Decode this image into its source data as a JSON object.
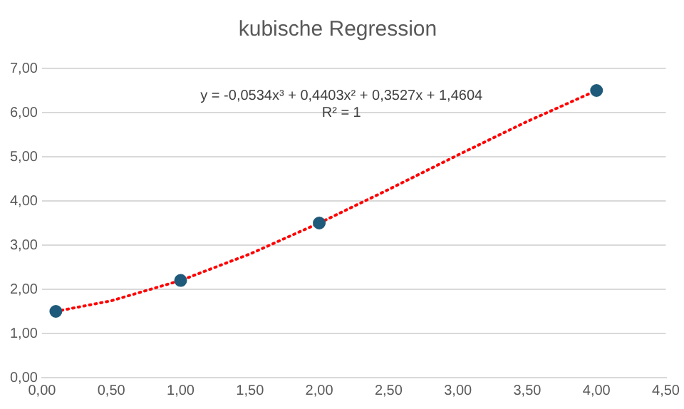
{
  "chart_data": {
    "type": "scatter",
    "title": "kubische Regression",
    "annotations": [
      "y = -0,0534x³ + 0,4403x² + 0,3527x + 1,4604",
      "R² = 1"
    ],
    "series": [
      {
        "type": "scatter",
        "color": "#1f5a7a",
        "marker": "circle",
        "x": [
          0.1,
          1,
          2,
          4
        ],
        "values": [
          1.5,
          2.2,
          3.5,
          6.5
        ]
      },
      {
        "type": "line",
        "color": "#ff0000",
        "marker": "none",
        "line_style": "dotted",
        "x": [
          0.1,
          0.5,
          1,
          1.5,
          2,
          2.5,
          3,
          3.5,
          4
        ],
        "values": [
          1.5,
          1.74,
          2.2,
          2.8,
          3.5,
          4.26,
          5.04,
          5.8,
          6.5
        ]
      }
    ],
    "xlim": [
      0,
      4.5
    ],
    "xticks": [
      {
        "value": 0,
        "label": "0,00"
      },
      {
        "value": 0.5,
        "label": "0,50"
      },
      {
        "value": 1,
        "label": "1,00"
      },
      {
        "value": 1.5,
        "label": "1,50"
      },
      {
        "value": 2,
        "label": "2,00"
      },
      {
        "value": 2.5,
        "label": "2,50"
      },
      {
        "value": 3,
        "label": "3,00"
      },
      {
        "value": 3.5,
        "label": "3,50"
      },
      {
        "value": 4,
        "label": "4,00"
      },
      {
        "value": 4.5,
        "label": "4,50"
      }
    ],
    "ylim": [
      0,
      7
    ],
    "yticks": [
      {
        "value": 0,
        "label": "0,00"
      },
      {
        "value": 1,
        "label": "1,00"
      },
      {
        "value": 2,
        "label": "2,00"
      },
      {
        "value": 3,
        "label": "3,00"
      },
      {
        "value": 4,
        "label": "4,00"
      },
      {
        "value": 5,
        "label": "5,00"
      },
      {
        "value": 6,
        "label": "6,00"
      },
      {
        "value": 7,
        "label": "7,00"
      }
    ],
    "grid": "y",
    "legend": false
  }
}
